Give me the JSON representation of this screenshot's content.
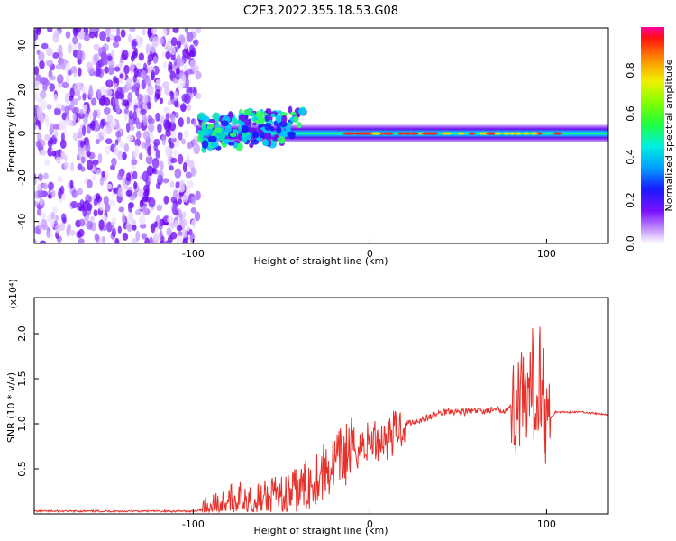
{
  "chart_data": [
    {
      "type": "heatmap",
      "title": "C2E3.2022.355.18.53.G08",
      "xlabel": "Height of straight line (km)",
      "ylabel": "Frequency (Hz)",
      "xlim": [
        -190,
        135
      ],
      "ylim": [
        -50,
        48
      ],
      "xticks": [
        "-100",
        "0",
        "100"
      ],
      "yticks": [
        "-40",
        "-20",
        "0",
        "20",
        "40"
      ],
      "colorbar": {
        "label": "Normalized spectral amplitude",
        "ticks": [
          "0.0",
          "0.2",
          "0.4",
          "0.6",
          "0.8"
        ],
        "range": [
          0,
          1
        ]
      },
      "regions": [
        {
          "name": "noise",
          "x_range": [
            -190,
            -97
          ],
          "freq_range": [
            -50,
            48
          ],
          "amplitude": 0.2
        },
        {
          "name": "signal-track",
          "x_range": [
            -97,
            135
          ],
          "freq_center": 0,
          "amplitude_peak": 1.0
        }
      ]
    },
    {
      "type": "line",
      "xlabel": "Height of straight line (km)",
      "ylabel": "SNR (10 * v/v)",
      "y_multiplier": "(x10⁴)",
      "xlim": [
        -190,
        135
      ],
      "ylim": [
        0,
        2.4
      ],
      "xticks": [
        "-100",
        "0",
        "100"
      ],
      "yticks": [
        "0.5",
        "1.0",
        "1.5",
        "2.0"
      ],
      "series_color": "#e8302a",
      "x": [
        -190,
        -150,
        -100,
        -95,
        -80,
        -70,
        -60,
        -50,
        -40,
        -30,
        -20,
        -10,
        -5,
        0,
        10,
        20,
        30,
        40,
        45,
        50,
        60,
        70,
        75,
        80,
        85,
        90,
        92,
        94,
        96,
        100,
        105,
        110,
        120,
        135
      ],
      "values": [
        0.03,
        0.03,
        0.03,
        0.05,
        0.15,
        0.2,
        0.15,
        0.18,
        0.25,
        0.42,
        0.55,
        0.72,
        0.75,
        0.8,
        0.85,
        1.0,
        1.05,
        1.12,
        1.15,
        1.13,
        1.14,
        1.15,
        1.15,
        1.18,
        1.25,
        1.05,
        1.55,
        1.1,
        1.7,
        1.0,
        1.13,
        1.13,
        1.13,
        1.1
      ]
    }
  ]
}
